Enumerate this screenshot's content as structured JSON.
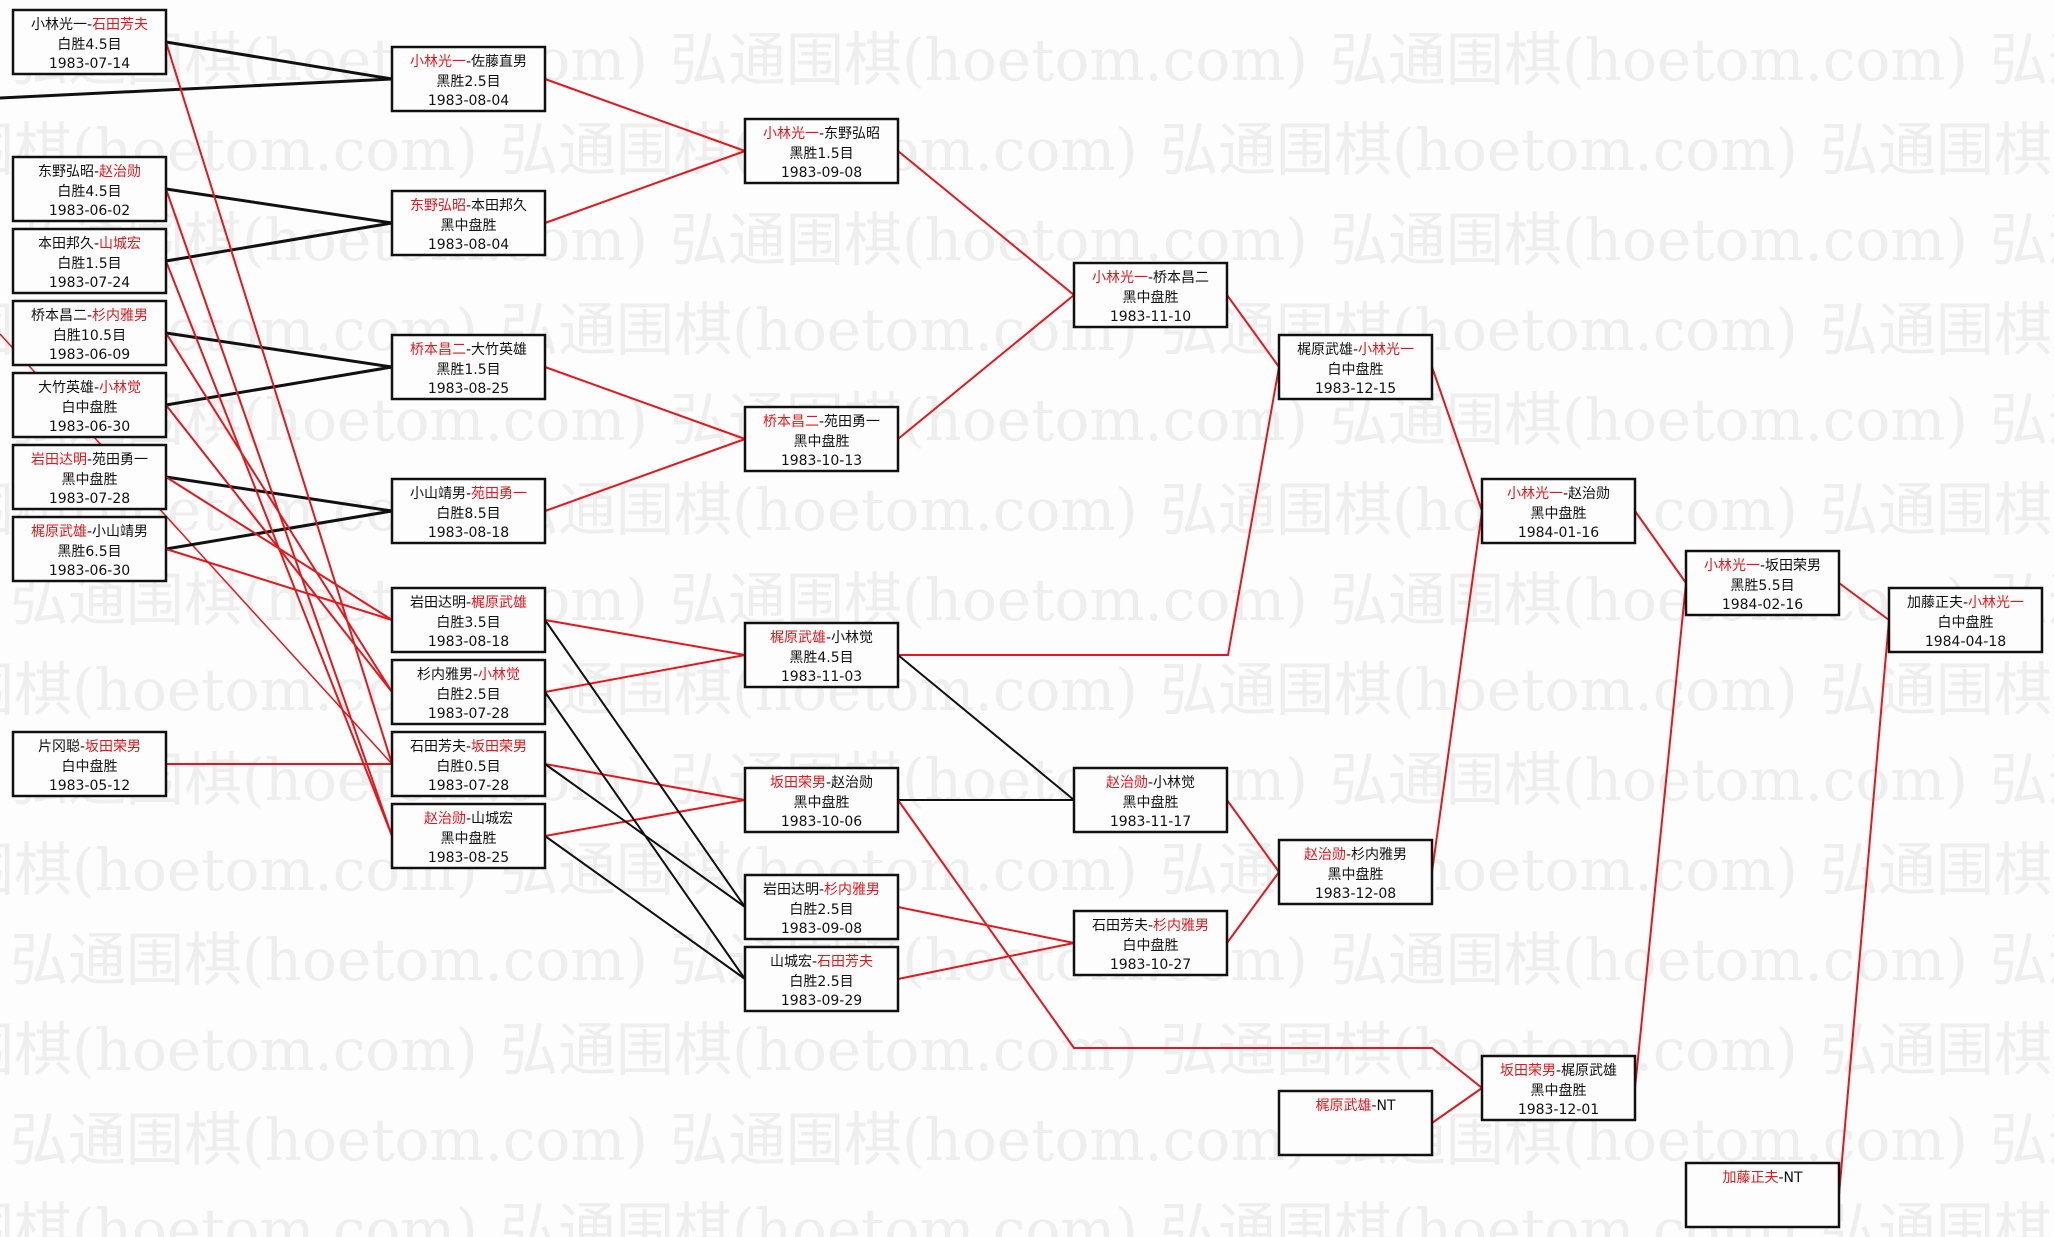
{
  "watermark": "弘通围棋(hoetom.com)",
  "colors": {
    "winner": "#e8161b",
    "line_winner": "#e8161b",
    "line_loser": "#111111"
  },
  "games": [
    {
      "p1": "小林光一",
      "p2": "石田芳夫",
      "red": 2,
      "result": "白胜4.5目",
      "date": "1983-07-14"
    },
    {
      "p1": "东野弘昭",
      "p2": "赵治勋",
      "red": 2,
      "result": "白胜4.5目",
      "date": "1983-06-02"
    },
    {
      "p1": "本田邦久",
      "p2": "山城宏",
      "red": 2,
      "result": "白胜1.5目",
      "date": "1983-07-24"
    },
    {
      "p1": "桥本昌二",
      "p2": "杉内雅男",
      "red": 2,
      "result": "白胜10.5目",
      "date": "1983-06-09"
    },
    {
      "p1": "大竹英雄",
      "p2": "小林觉",
      "red": 2,
      "result": "白中盘胜",
      "date": "1983-06-30"
    },
    {
      "p1": "岩田达明",
      "p2": "苑田勇一",
      "red": 1,
      "result": "黑中盘胜",
      "date": "1983-07-28"
    },
    {
      "p1": "梶原武雄",
      "p2": "小山靖男",
      "red": 1,
      "result": "黑胜6.5目",
      "date": "1983-06-30"
    },
    {
      "p1": "片冈聪",
      "p2": "坂田荣男",
      "red": 2,
      "result": "白中盘胜",
      "date": "1983-05-12"
    },
    {
      "p1": "小林光一",
      "p2": "佐藤直男",
      "red": 1,
      "result": "黑胜2.5目",
      "date": "1983-08-04"
    },
    {
      "p1": "东野弘昭",
      "p2": "本田邦久",
      "red": 1,
      "result": "黑中盘胜",
      "date": "1983-08-04"
    },
    {
      "p1": "桥本昌二",
      "p2": "大竹英雄",
      "red": 1,
      "result": "黑胜1.5目",
      "date": "1983-08-25"
    },
    {
      "p1": "小山靖男",
      "p2": "苑田勇一",
      "red": 2,
      "result": "白胜8.5目",
      "date": "1983-08-18"
    },
    {
      "p1": "岩田达明",
      "p2": "梶原武雄",
      "red": 2,
      "result": "白胜3.5目",
      "date": "1983-08-18"
    },
    {
      "p1": "杉内雅男",
      "p2": "小林觉",
      "red": 2,
      "result": "白胜2.5目",
      "date": "1983-07-28"
    },
    {
      "p1": "石田芳夫",
      "p2": "坂田荣男",
      "red": 2,
      "result": "白胜0.5目",
      "date": "1983-07-28"
    },
    {
      "p1": "赵治勋",
      "p2": "山城宏",
      "red": 1,
      "result": "黑中盘胜",
      "date": "1983-08-25"
    },
    {
      "p1": "小林光一",
      "p2": "东野弘昭",
      "red": 1,
      "result": "黑胜1.5目",
      "date": "1983-09-08"
    },
    {
      "p1": "桥本昌二",
      "p2": "苑田勇一",
      "red": 1,
      "result": "黑中盘胜",
      "date": "1983-10-13"
    },
    {
      "p1": "梶原武雄",
      "p2": "小林觉",
      "red": 1,
      "result": "黑胜4.5目",
      "date": "1983-11-03"
    },
    {
      "p1": "坂田荣男",
      "p2": "赵治勋",
      "red": 1,
      "result": "黑中盘胜",
      "date": "1983-10-06"
    },
    {
      "p1": "岩田达明",
      "p2": "杉内雅男",
      "red": 2,
      "result": "白胜2.5目",
      "date": "1983-09-08"
    },
    {
      "p1": "山城宏",
      "p2": "石田芳夫",
      "red": 2,
      "result": "白胜2.5目",
      "date": "1983-09-29"
    },
    {
      "p1": "小林光一",
      "p2": "桥本昌二",
      "red": 1,
      "result": "黑中盘胜",
      "date": "1983-11-10"
    },
    {
      "p1": "赵治勋",
      "p2": "小林觉",
      "red": 1,
      "result": "黑中盘胜",
      "date": "1983-11-17"
    },
    {
      "p1": "石田芳夫",
      "p2": "杉内雅男",
      "red": 2,
      "result": "白中盘胜",
      "date": "1983-10-27"
    },
    {
      "p1": "梶原武雄",
      "p2": "小林光一",
      "red": 2,
      "result": "白中盘胜",
      "date": "1983-12-15"
    },
    {
      "p1": "赵治勋",
      "p2": "杉内雅男",
      "red": 1,
      "result": "黑中盘胜",
      "date": "1983-12-08"
    },
    {
      "p1": "梶原武雄",
      "p2": "NT",
      "red": 1,
      "result": "",
      "date": ""
    },
    {
      "p1": "小林光一",
      "p2": "赵治勋",
      "red": 1,
      "result": "黑中盘胜",
      "date": "1984-01-16"
    },
    {
      "p1": "坂田荣男",
      "p2": "梶原武雄",
      "red": 1,
      "result": "黑中盘胜",
      "date": "1983-12-01"
    },
    {
      "p1": "小林光一",
      "p2": "坂田荣男",
      "red": 1,
      "result": "黑胜5.5目",
      "date": "1984-02-16"
    },
    {
      "p1": "加藤正夫",
      "p2": "NT",
      "red": 1,
      "result": "",
      "date": ""
    },
    {
      "p1": "加藤正夫",
      "p2": "小林光一",
      "red": 2,
      "result": "白中盘胜",
      "date": "1984-04-18"
    }
  ]
}
